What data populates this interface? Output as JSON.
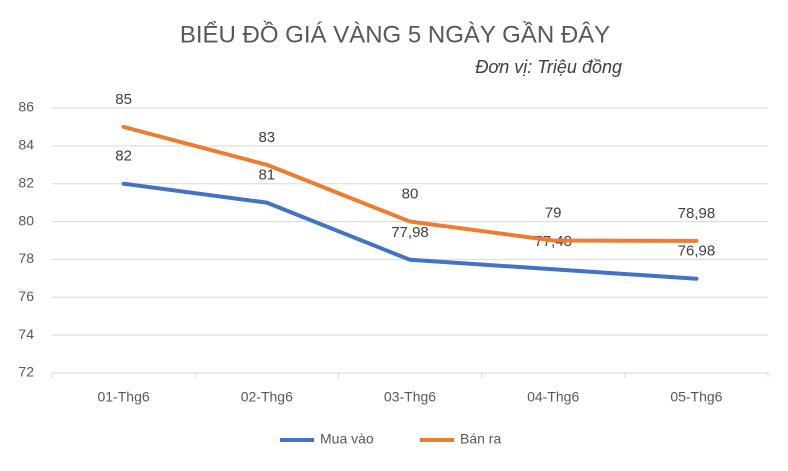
{
  "chart_data": {
    "type": "line",
    "title": "BIỂU ĐỒ GIÁ VÀNG 5 NGÀY GẦN ĐÂY",
    "subtitle": "Đơn vị: Triệu đồng",
    "categories": [
      "01-Thg6",
      "02-Thg6",
      "03-Thg6",
      "04-Thg6",
      "05-Thg6"
    ],
    "series": [
      {
        "name": "Mua vào",
        "color": "#4472c4",
        "values": [
          82,
          81,
          77.98,
          77.48,
          76.98
        ],
        "value_labels": [
          "82",
          "81",
          "77,98",
          "77,48",
          "76,98"
        ]
      },
      {
        "name": "Bán ra",
        "color": "#ed7d31",
        "values": [
          85,
          83,
          80,
          79,
          78.98
        ],
        "value_labels": [
          "85",
          "83",
          "80",
          "79",
          "78,98"
        ]
      }
    ],
    "ylim": [
      72,
      86
    ],
    "yticks": [
      72,
      74,
      76,
      78,
      80,
      82,
      84,
      86
    ],
    "grid": true,
    "legend": "bottom"
  }
}
